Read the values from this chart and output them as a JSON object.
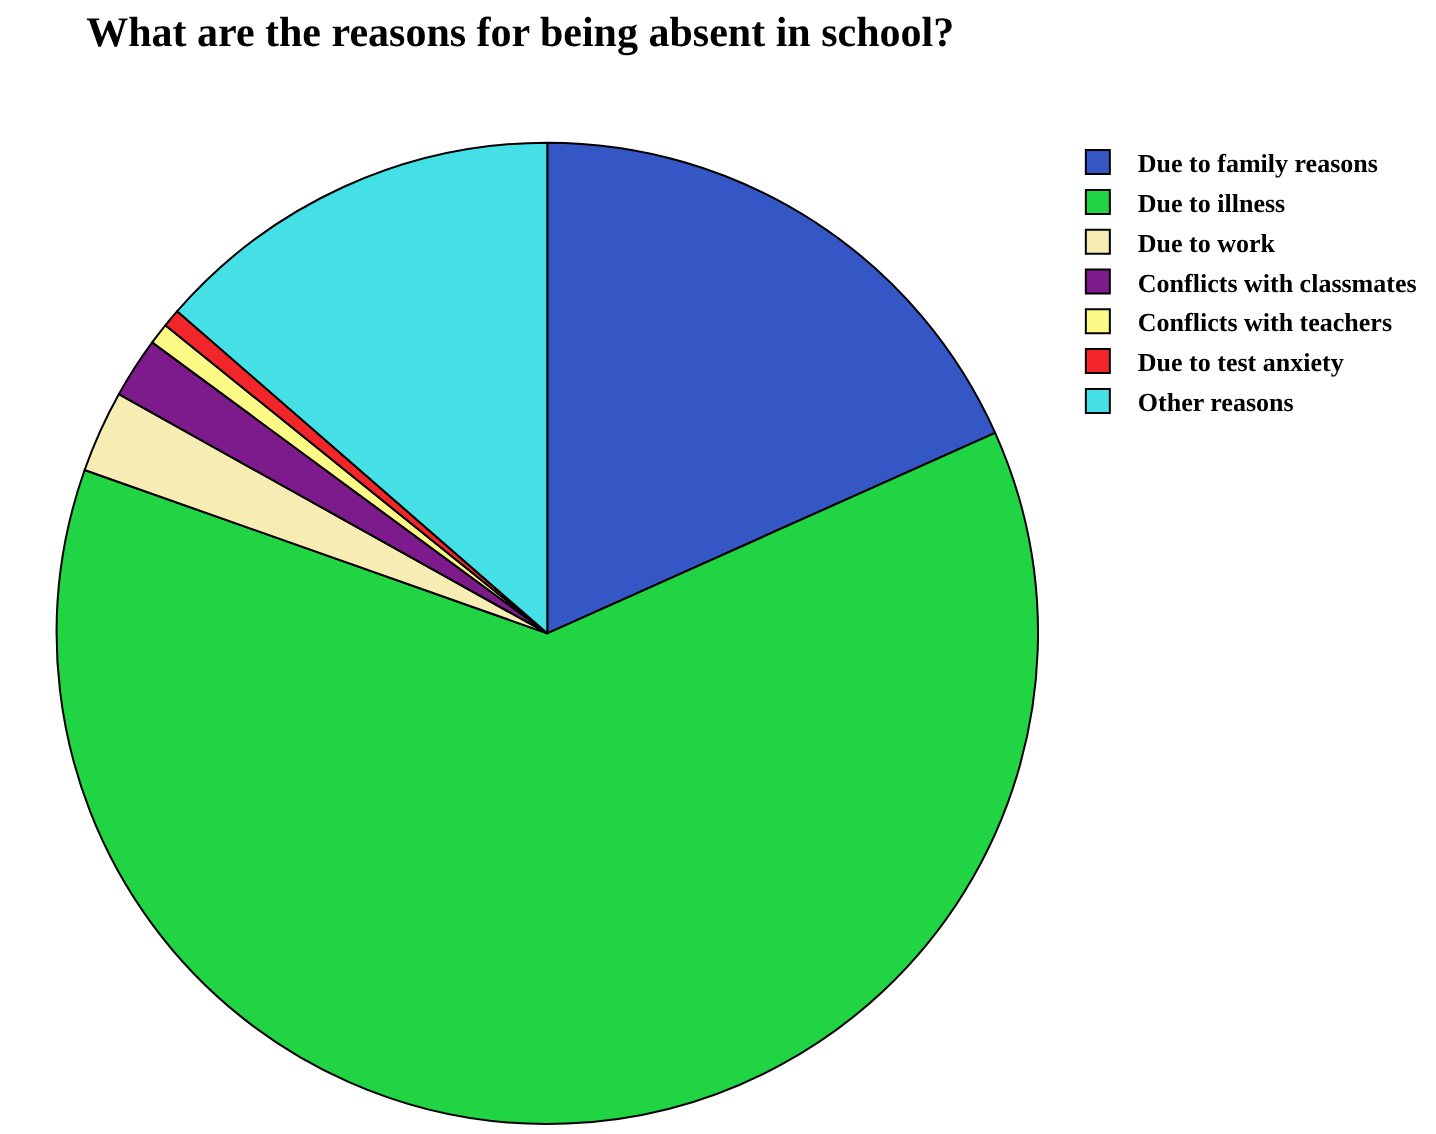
{
  "chart_data": {
    "type": "pie",
    "title": "What are the reasons for being absent in school?",
    "categories": [
      "Due to family reasons",
      "Due to illness",
      "Due to work",
      "Conflicts with classmates",
      "Conflicts with teachers",
      "Due to test anxiety",
      "Other reasons"
    ],
    "values": [
      18.3,
      62.1,
      2.7,
      2.0,
      0.7,
      0.6,
      13.6
    ],
    "colors": [
      "#3557c6",
      "#20d443",
      "#f7edb4",
      "#7d1a8c",
      "#fdfb86",
      "#f2262a",
      "#45e0e6"
    ],
    "legend": "top right"
  }
}
